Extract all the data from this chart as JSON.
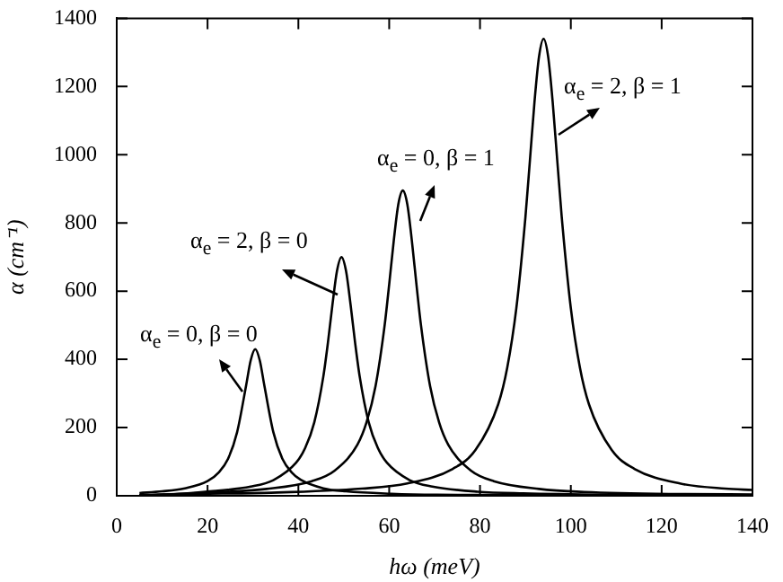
{
  "chart_data": {
    "type": "line",
    "xlabel": "hω (meV)",
    "ylabel": "α (cm⁻¹)",
    "xlim": [
      0,
      140
    ],
    "ylim": [
      0,
      1400
    ],
    "xticks": [
      0,
      20,
      40,
      60,
      80,
      100,
      120,
      140
    ],
    "yticks": [
      0,
      200,
      400,
      600,
      800,
      1000,
      1200,
      1400
    ],
    "grid": false,
    "legend": false,
    "marker": "none",
    "line_style": "solid",
    "series": [
      {
        "name": "α$_{e}$ = 0, β = 0",
        "color": "#000000",
        "x": [
          5,
          10,
          15,
          20,
          22.5,
          24.5,
          26.5,
          28.5,
          29.5,
          30.5,
          31.5,
          32.5,
          34.5,
          36.5,
          38.5,
          40.5,
          45.5,
          50.5,
          60.5,
          70.5,
          90.5,
          110,
          140
        ],
        "values": [
          8,
          13,
          22,
          43,
          69,
          108,
          186,
          324,
          397,
          430,
          397,
          324,
          186,
          108,
          69,
          47,
          22,
          13,
          6,
          3,
          2,
          1,
          0
        ]
      },
      {
        "name": "α$_{e}$ = 2, β = 0",
        "color": "#000000",
        "x": [
          5,
          10,
          19.5,
          29.5,
          34.5,
          39.5,
          41.5,
          43.5,
          45.5,
          46.5,
          47.5,
          48.5,
          49.5,
          50.5,
          51.5,
          52.5,
          53.5,
          55.5,
          57.5,
          59.5,
          64.5,
          69.5,
          79.5,
          89.5,
          109.5,
          140
        ],
        "values": [
          2,
          3,
          12,
          27,
          46,
          97,
          140,
          215,
          350,
          448,
          560,
          659,
          700,
          659,
          560,
          448,
          350,
          215,
          140,
          97,
          46,
          27,
          12,
          7,
          3,
          1
        ]
      },
      {
        "name": "α$_{e}$ = 0, β = 1",
        "color": "#000000",
        "x": [
          5,
          23,
          33,
          43,
          48,
          53,
          55,
          57,
          59,
          60,
          61,
          62,
          63,
          64,
          65,
          66,
          67,
          69,
          71,
          73,
          78,
          83,
          93,
          103,
          123,
          140
        ],
        "values": [
          1,
          11,
          20,
          43,
          74,
          150,
          215,
          322,
          500,
          620,
          747,
          854,
          895,
          854,
          747,
          620,
          500,
          322,
          215,
          150,
          74,
          43,
          20,
          11,
          5,
          4
        ]
      },
      {
        "name": "α$_{e}$ = 2, β = 1",
        "color": "#000000",
        "x": [
          5,
          14,
          34,
          54,
          64,
          74,
          79,
          84,
          86,
          88,
          90,
          91,
          92,
          93,
          94,
          95,
          96,
          97,
          98,
          100,
          102,
          104,
          109,
          114,
          124,
          134,
          140
        ],
        "values": [
          1,
          5,
          9,
          21,
          36,
          79,
          134,
          268,
          376,
          550,
          817,
          985,
          1155,
          1288,
          1340,
          1288,
          1155,
          985,
          817,
          550,
          376,
          268,
          134,
          79,
          36,
          21,
          17
        ]
      }
    ]
  }
}
